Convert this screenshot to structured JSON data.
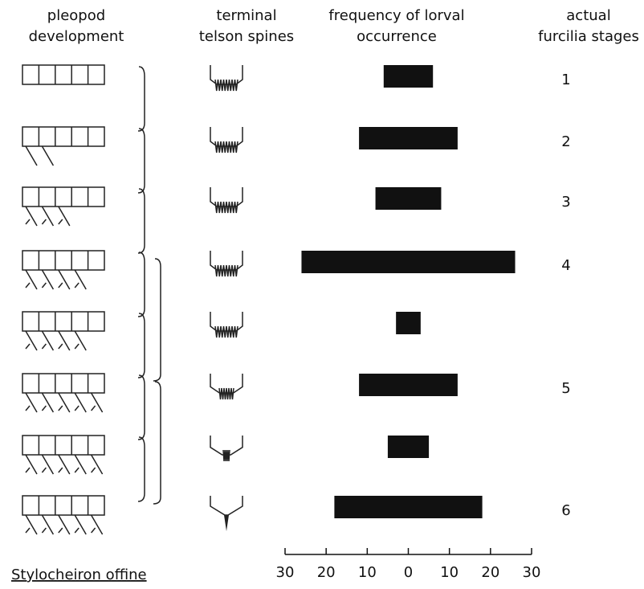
{
  "chart_data": {
    "type": "bar",
    "title": "Stylocheiron offine",
    "column_headers": [
      [
        "pleopod",
        "development"
      ],
      [
        "terminal",
        "telson spines"
      ],
      [
        "frequency of lorval",
        "occurrence"
      ],
      [
        "actual",
        "furcilia stages"
      ]
    ],
    "categories": [
      "1",
      "2",
      "3",
      "4",
      null,
      "5",
      null,
      "6"
    ],
    "values": [
      6,
      12,
      8,
      26,
      3,
      12,
      5,
      18
    ],
    "color": "#111111",
    "xlim": [
      -30,
      30
    ],
    "xticks": [
      {
        "value": -30,
        "label": "30"
      },
      {
        "value": -20,
        "label": "20"
      },
      {
        "value": -10,
        "label": "10"
      },
      0,
      10,
      20,
      30
    ]
  }
}
